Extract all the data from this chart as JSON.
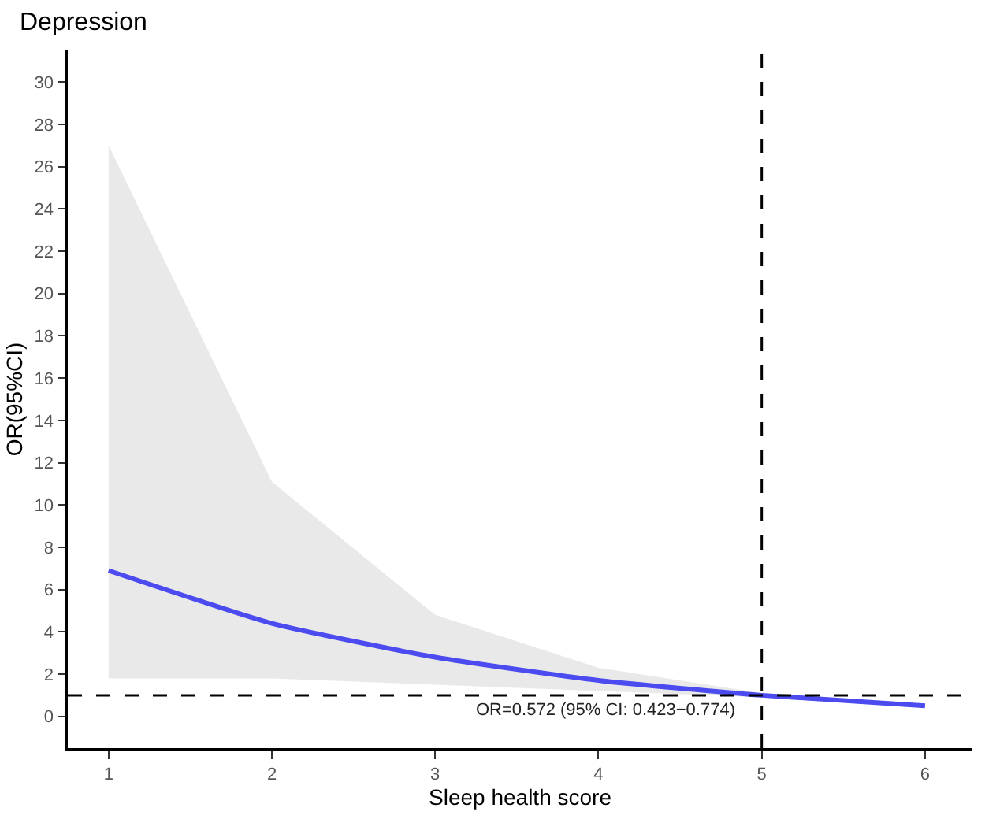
{
  "chart_data": {
    "type": "line",
    "title": "Depression",
    "xlabel": "Sleep health score",
    "ylabel": "OR(95%CI)",
    "x": [
      1,
      2,
      3,
      4,
      5,
      6
    ],
    "series": [
      {
        "color": "#4b4bf0",
        "values": [
          6.9,
          4.4,
          2.8,
          1.7,
          1.0,
          0.5
        ],
        "lower": [
          1.8,
          1.8,
          1.5,
          1.2,
          0.9,
          0.4
        ],
        "upper": [
          27.0,
          11.1,
          4.8,
          2.3,
          1.1,
          0.6
        ]
      }
    ],
    "xlim": [
      0.75,
      6.29
    ],
    "xticks": [
      1,
      2,
      3,
      4,
      5,
      6
    ],
    "ylim": [
      -1.5,
      31.5
    ],
    "yticks": [
      0,
      2,
      4,
      6,
      8,
      10,
      12,
      14,
      16,
      18,
      20,
      22,
      24,
      26,
      28,
      30
    ],
    "ref_lines": [
      {
        "axis": "x",
        "value": 5,
        "line_style": "dashed",
        "color": "#000000"
      },
      {
        "axis": "y",
        "value": 1,
        "line_style": "dashed",
        "color": "#000000"
      }
    ],
    "annotations": [
      {
        "text": "OR=0.572 (95% CI: 0.423−0.774)",
        "x": 4.05,
        "y": 1
      }
    ],
    "marker": "none",
    "line_style": "solid"
  }
}
